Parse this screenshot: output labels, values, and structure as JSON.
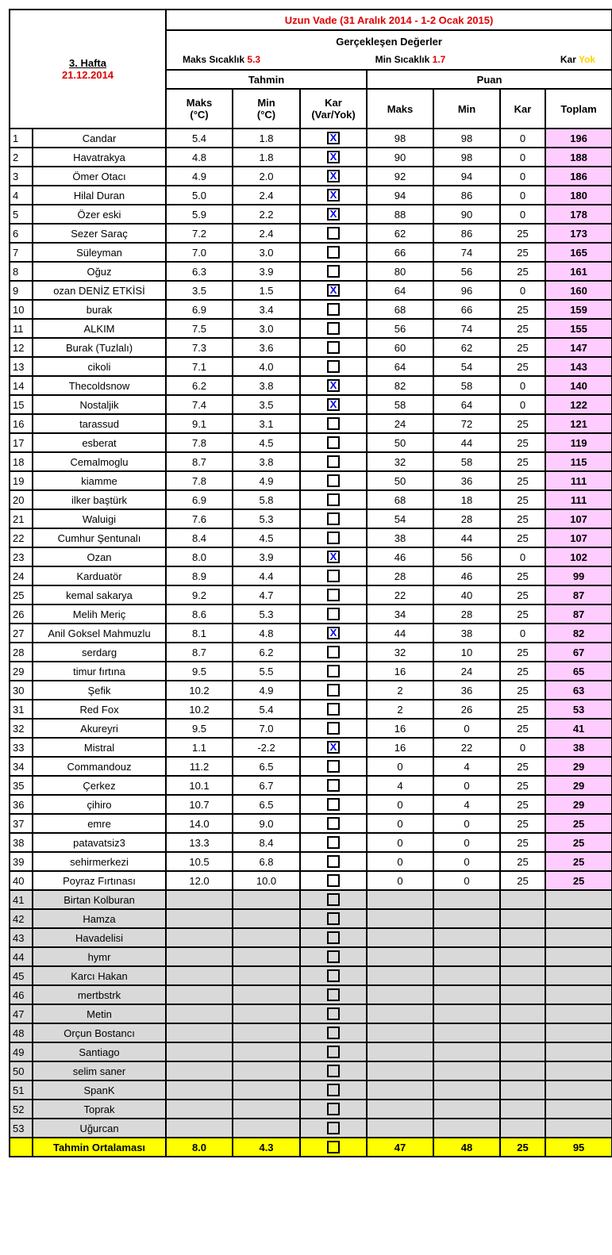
{
  "header": {
    "week": "3. Hafta",
    "date": "21.12.2014",
    "title": "Uzun Vade (31 Aralık 2014 - 1-2 Ocak 2015)",
    "actuals_title": "Gerçekleşen Değerler",
    "max_label": "Maks Sıcaklık",
    "max_value": "5.3",
    "min_label": "Min Sıcaklık",
    "min_value": "1.7",
    "snow_label": "Kar",
    "snow_value": "Yok",
    "forecast_group": "Tahmin",
    "score_group": "Puan",
    "col_f_max": "Maks",
    "col_f_max_unit": "(°C)",
    "col_f_min": "Min",
    "col_f_min_unit": "(°C)",
    "col_f_snow": "Kar",
    "col_f_snow_unit": "(Var/Yok)",
    "col_s_max": "Maks",
    "col_s_min": "Min",
    "col_s_snow": "Kar",
    "col_total": "Toplam"
  },
  "colors": {
    "red": "#e00000",
    "total_bg": "#ffccff",
    "empty_bg": "#d9d9d9",
    "footer_bg": "#ffff00",
    "check": "#0000ee"
  },
  "rows": [
    [
      "1",
      "Candar",
      "5.4",
      "1.8",
      true,
      "98",
      "98",
      "0",
      "196"
    ],
    [
      "2",
      "Havatrakya",
      "4.8",
      "1.8",
      true,
      "90",
      "98",
      "0",
      "188"
    ],
    [
      "3",
      "Ömer Otacı",
      "4.9",
      "2.0",
      true,
      "92",
      "94",
      "0",
      "186"
    ],
    [
      "4",
      "Hilal Duran",
      "5.0",
      "2.4",
      true,
      "94",
      "86",
      "0",
      "180"
    ],
    [
      "5",
      "Özer eski",
      "5.9",
      "2.2",
      true,
      "88",
      "90",
      "0",
      "178"
    ],
    [
      "6",
      "Sezer Saraç",
      "7.2",
      "2.4",
      false,
      "62",
      "86",
      "25",
      "173"
    ],
    [
      "7",
      "Süleyman",
      "7.0",
      "3.0",
      false,
      "66",
      "74",
      "25",
      "165"
    ],
    [
      "8",
      "Oğuz",
      "6.3",
      "3.9",
      false,
      "80",
      "56",
      "25",
      "161"
    ],
    [
      "9",
      "ozan DENİZ ETKİSİ",
      "3.5",
      "1.5",
      true,
      "64",
      "96",
      "0",
      "160"
    ],
    [
      "10",
      "burak",
      "6.9",
      "3.4",
      false,
      "68",
      "66",
      "25",
      "159"
    ],
    [
      "11",
      "ALKIM",
      "7.5",
      "3.0",
      false,
      "56",
      "74",
      "25",
      "155"
    ],
    [
      "12",
      "Burak (Tuzlalı)",
      "7.3",
      "3.6",
      false,
      "60",
      "62",
      "25",
      "147"
    ],
    [
      "13",
      "cikoli",
      "7.1",
      "4.0",
      false,
      "64",
      "54",
      "25",
      "143"
    ],
    [
      "14",
      "Thecoldsnow",
      "6.2",
      "3.8",
      true,
      "82",
      "58",
      "0",
      "140"
    ],
    [
      "15",
      "Nostaljik",
      "7.4",
      "3.5",
      true,
      "58",
      "64",
      "0",
      "122"
    ],
    [
      "16",
      "tarassud",
      "9.1",
      "3.1",
      false,
      "24",
      "72",
      "25",
      "121"
    ],
    [
      "17",
      "esberat",
      "7.8",
      "4.5",
      false,
      "50",
      "44",
      "25",
      "119"
    ],
    [
      "18",
      "Cemalmoglu",
      "8.7",
      "3.8",
      false,
      "32",
      "58",
      "25",
      "115"
    ],
    [
      "19",
      "kiamme",
      "7.8",
      "4.9",
      false,
      "50",
      "36",
      "25",
      "111"
    ],
    [
      "20",
      "ilker baştürk",
      "6.9",
      "5.8",
      false,
      "68",
      "18",
      "25",
      "111"
    ],
    [
      "21",
      "Waluigi",
      "7.6",
      "5.3",
      false,
      "54",
      "28",
      "25",
      "107"
    ],
    [
      "22",
      "Cumhur Şentunalı",
      "8.4",
      "4.5",
      false,
      "38",
      "44",
      "25",
      "107"
    ],
    [
      "23",
      "Ozan",
      "8.0",
      "3.9",
      true,
      "46",
      "56",
      "0",
      "102"
    ],
    [
      "24",
      "Karduatör",
      "8.9",
      "4.4",
      false,
      "28",
      "46",
      "25",
      "99"
    ],
    [
      "25",
      "kemal sakarya",
      "9.2",
      "4.7",
      false,
      "22",
      "40",
      "25",
      "87"
    ],
    [
      "26",
      "Melih Meriç",
      "8.6",
      "5.3",
      false,
      "34",
      "28",
      "25",
      "87"
    ],
    [
      "27",
      "Anil Goksel Mahmuzlu",
      "8.1",
      "4.8",
      true,
      "44",
      "38",
      "0",
      "82"
    ],
    [
      "28",
      "serdarg",
      "8.7",
      "6.2",
      false,
      "32",
      "10",
      "25",
      "67"
    ],
    [
      "29",
      "timur fırtına",
      "9.5",
      "5.5",
      false,
      "16",
      "24",
      "25",
      "65"
    ],
    [
      "30",
      "Şefik",
      "10.2",
      "4.9",
      false,
      "2",
      "36",
      "25",
      "63"
    ],
    [
      "31",
      "Red Fox",
      "10.2",
      "5.4",
      false,
      "2",
      "26",
      "25",
      "53"
    ],
    [
      "32",
      "Akureyri",
      "9.5",
      "7.0",
      false,
      "16",
      "0",
      "25",
      "41"
    ],
    [
      "33",
      "Mistral",
      "1.1",
      "-2.2",
      true,
      "16",
      "22",
      "0",
      "38"
    ],
    [
      "34",
      "Commandouz",
      "11.2",
      "6.5",
      false,
      "0",
      "4",
      "25",
      "29"
    ],
    [
      "35",
      "Çerkez",
      "10.1",
      "6.7",
      false,
      "4",
      "0",
      "25",
      "29"
    ],
    [
      "36",
      "çihiro",
      "10.7",
      "6.5",
      false,
      "0",
      "4",
      "25",
      "29"
    ],
    [
      "37",
      "emre",
      "14.0",
      "9.0",
      false,
      "0",
      "0",
      "25",
      "25"
    ],
    [
      "38",
      "patavatsiz3",
      "13.3",
      "8.4",
      false,
      "0",
      "0",
      "25",
      "25"
    ],
    [
      "39",
      "sehirmerkezi",
      "10.5",
      "6.8",
      false,
      "0",
      "0",
      "25",
      "25"
    ],
    [
      "40",
      "Poyraz Fırtınası",
      "12.0",
      "10.0",
      false,
      "0",
      "0",
      "25",
      "25"
    ],
    [
      "41",
      "Birtan Kolburan",
      "",
      "",
      false,
      "",
      "",
      "",
      ""
    ],
    [
      "42",
      "Hamza",
      "",
      "",
      false,
      "",
      "",
      "",
      ""
    ],
    [
      "43",
      "Havadelisi",
      "",
      "",
      false,
      "",
      "",
      "",
      ""
    ],
    [
      "44",
      "hymr",
      "",
      "",
      false,
      "",
      "",
      "",
      ""
    ],
    [
      "45",
      "Karcı Hakan",
      "",
      "",
      false,
      "",
      "",
      "",
      ""
    ],
    [
      "46",
      "mertbstrk",
      "",
      "",
      false,
      "",
      "",
      "",
      ""
    ],
    [
      "47",
      "Metin",
      "",
      "",
      false,
      "",
      "",
      "",
      ""
    ],
    [
      "48",
      "Orçun Bostancı",
      "",
      "",
      false,
      "",
      "",
      "",
      ""
    ],
    [
      "49",
      "Santiago",
      "",
      "",
      false,
      "",
      "",
      "",
      ""
    ],
    [
      "50",
      "selim saner",
      "",
      "",
      false,
      "",
      "",
      "",
      ""
    ],
    [
      "51",
      "SpanK",
      "",
      "",
      false,
      "",
      "",
      "",
      ""
    ],
    [
      "52",
      "Toprak",
      "",
      "",
      false,
      "",
      "",
      "",
      ""
    ],
    [
      "53",
      "Uğurcan",
      "",
      "",
      false,
      "",
      "",
      "",
      ""
    ]
  ],
  "footer": {
    "label": "Tahmin Ortalaması",
    "max": "8.0",
    "min": "4.3",
    "snow": false,
    "s_max": "47",
    "s_min": "48",
    "s_snow": "25",
    "total": "95"
  },
  "check_mark": "X"
}
